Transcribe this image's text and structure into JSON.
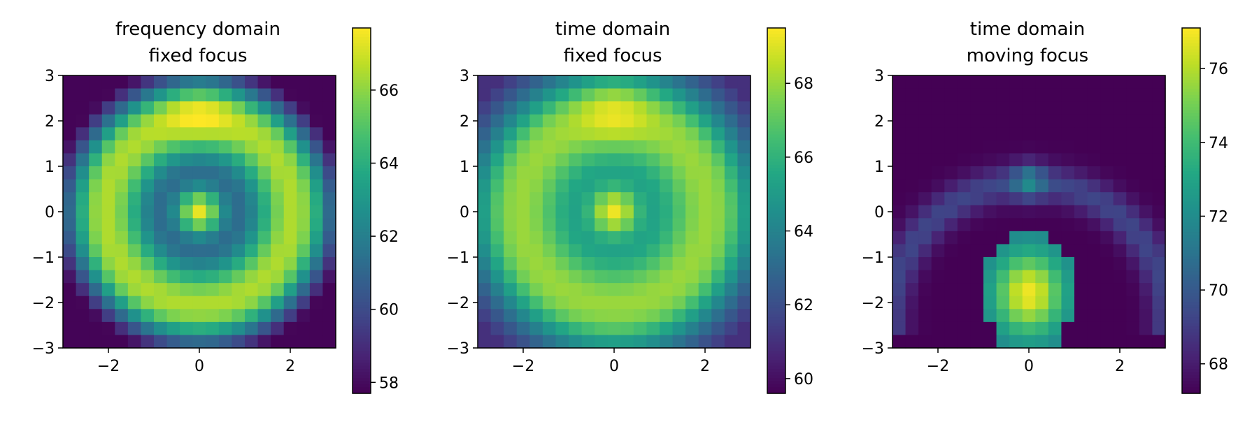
{
  "figure": {
    "background": "#ffffff"
  },
  "chart_data": [
    {
      "type": "heatmap",
      "title_lines": [
        "frequency domain",
        "fixed focus"
      ],
      "xlim": [
        -3,
        3
      ],
      "ylim": [
        -3,
        3
      ],
      "grid_size": 21,
      "x_ticks": [
        -2,
        0,
        2
      ],
      "y_ticks": [
        -3,
        -2,
        -1,
        0,
        1,
        2,
        3
      ],
      "colorbar": {
        "min": 57.7,
        "max": 67.7,
        "ticks": [
          58,
          60,
          62,
          64,
          66
        ]
      },
      "model": {
        "kind": "rings",
        "components": [
          {
            "type": "const",
            "value": 59.3
          },
          {
            "type": "gauss",
            "cx": 0,
            "cy": 0,
            "sigma": 0.38,
            "amp": 8.0
          },
          {
            "type": "ring",
            "cx": 0,
            "cy": 0,
            "r": 2.05,
            "w": 0.65,
            "amp": 7.2
          },
          {
            "type": "gauss",
            "cx": 0,
            "cy": 2.2,
            "sigma": 0.55,
            "amp": 1.4
          },
          {
            "type": "radial_min",
            "r0": 3.0,
            "slope": 3.2,
            "floor": 57.8
          }
        ]
      }
    },
    {
      "type": "heatmap",
      "title_lines": [
        "time domain",
        "fixed focus"
      ],
      "xlim": [
        -3,
        3
      ],
      "ylim": [
        -3,
        3
      ],
      "grid_size": 21,
      "x_ticks": [
        -2,
        0,
        2
      ],
      "y_ticks": [
        -3,
        -2,
        -1,
        0,
        1,
        2,
        3
      ],
      "colorbar": {
        "min": 59.6,
        "max": 69.5,
        "ticks": [
          60,
          62,
          64,
          66,
          68
        ]
      },
      "model": {
        "kind": "rings",
        "components": [
          {
            "type": "const",
            "value": 64.0
          },
          {
            "type": "gauss",
            "cx": 0,
            "cy": 0,
            "sigma": 0.38,
            "amp": 5.2
          },
          {
            "type": "ring",
            "cx": 0,
            "cy": 0,
            "r": 2.05,
            "w": 0.7,
            "amp": 4.0
          },
          {
            "type": "gauss",
            "cx": 0,
            "cy": 2.2,
            "sigma": 0.55,
            "amp": 1.3
          },
          {
            "type": "radial_min",
            "r0": 3.1,
            "slope": 2.4,
            "floor": 61.0
          }
        ]
      }
    },
    {
      "type": "heatmap",
      "title_lines": [
        "time domain",
        "moving focus"
      ],
      "xlim": [
        -3,
        3
      ],
      "ylim": [
        -3,
        3
      ],
      "grid_size": 21,
      "x_ticks": [
        -2,
        0,
        2
      ],
      "y_ticks": [
        -3,
        -2,
        -1,
        0,
        1,
        2,
        3
      ],
      "colorbar": {
        "min": 67.2,
        "max": 77.1,
        "ticks": [
          68,
          70,
          72,
          74,
          76
        ]
      },
      "model": {
        "kind": "arc_blob",
        "background": 67.2,
        "arc": {
          "cx": 0,
          "cy": -2.4,
          "r": 3.05,
          "w": 0.28,
          "amp": 2.1,
          "peak_amp": 2.8,
          "peak_x": 0,
          "peak_sigma": 0.25
        },
        "blob": {
          "cx": 0,
          "cy": -1.8,
          "rx": 1.0,
          "ry": 1.3,
          "amp": 9.7,
          "sx": 0.55,
          "sy": 0.65,
          "base": 4.0
        }
      }
    }
  ]
}
